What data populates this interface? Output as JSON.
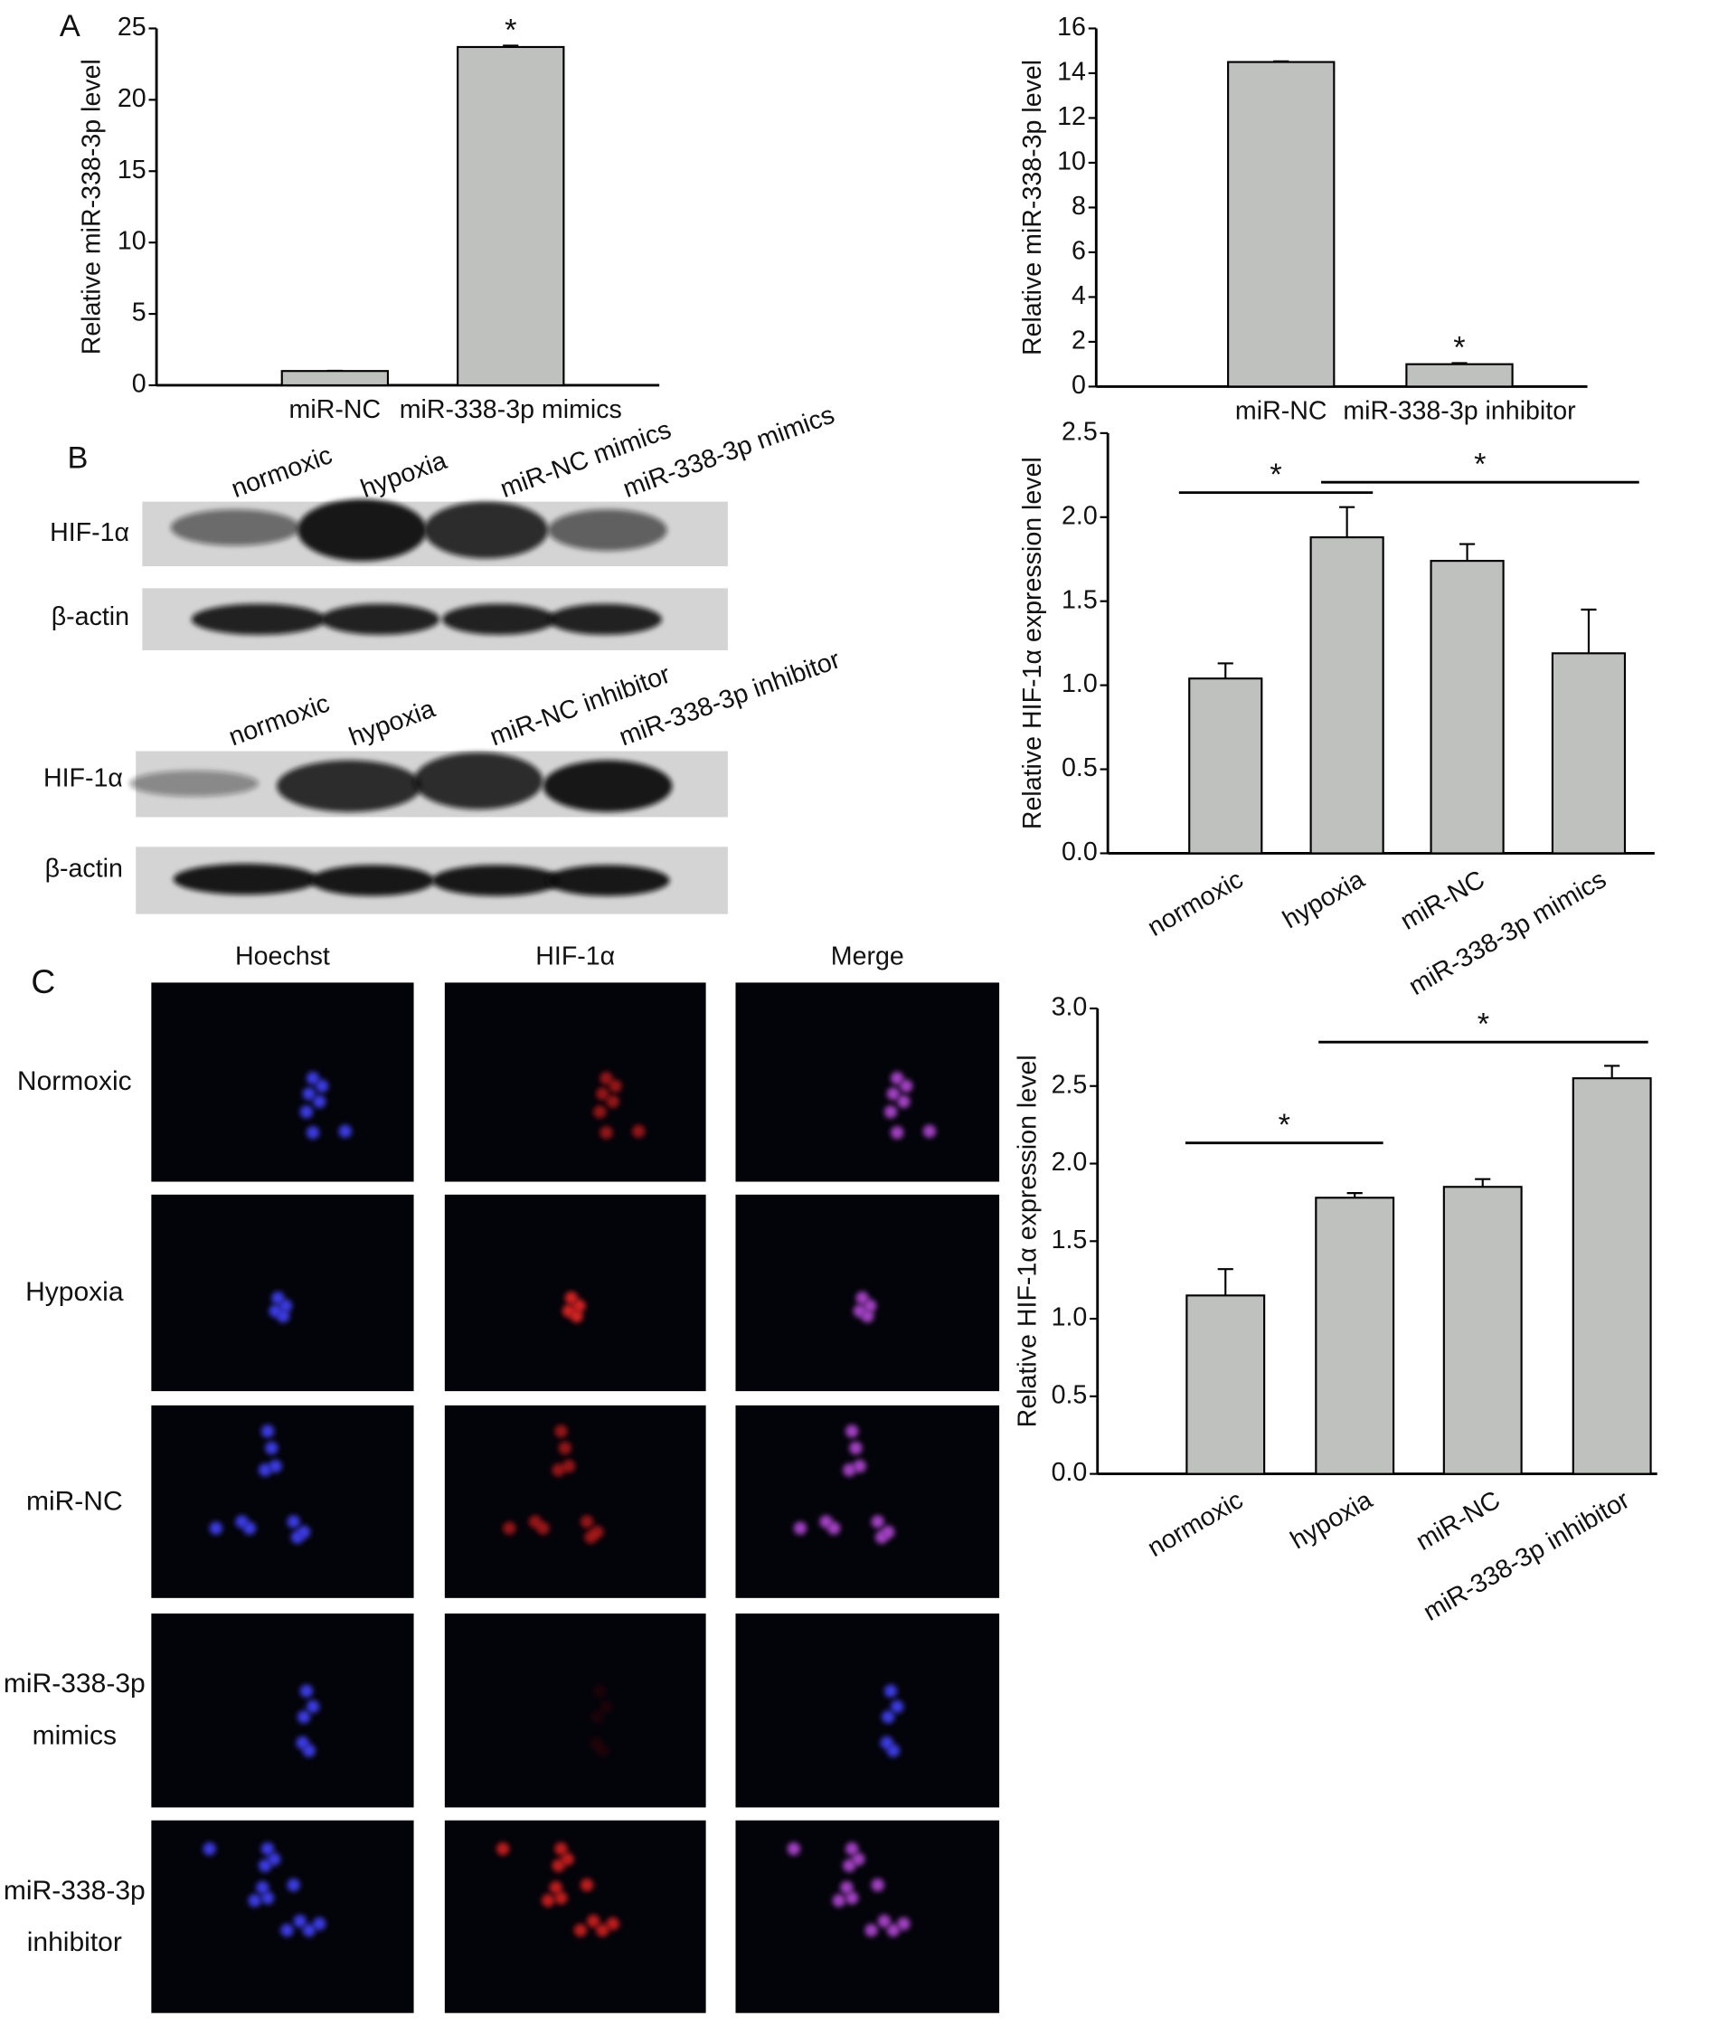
{
  "panel_labels": [
    "A",
    "B",
    "C"
  ],
  "western_blot": [
    {
      "lanes": [
        "normoxic",
        "hypoxia",
        "miR-NC mimics",
        "miR-338-3p mimics"
      ],
      "rows": [
        "HIF-1α",
        "β-actin"
      ]
    },
    {
      "lanes": [
        "normoxic",
        "hypoxia",
        "miR-NC inhibitor",
        "miR-338-3p inhibitor"
      ],
      "rows": [
        "HIF-1α",
        "β-actin"
      ]
    }
  ],
  "fluorescence": {
    "columns": [
      "Hoechst",
      "HIF-1α",
      "Merge"
    ],
    "rows": [
      "Normoxic",
      "Hypoxia",
      "miR-NC",
      "miR-338-3p mimics",
      "miR-338-3p inhibitor"
    ]
  },
  "chart_data": [
    {
      "type": "bar",
      "y_label": "Relative miR-338-3p level",
      "categories": [
        "miR-NC",
        "miR-338-3p mimics"
      ],
      "values": [
        1,
        23.7
      ],
      "errors": [
        0.02,
        0.1
      ],
      "ylim": [
        0,
        25
      ],
      "yticks": [
        0,
        5,
        10,
        15,
        20,
        25
      ],
      "annotations": [
        "*"
      ],
      "color": "#bfc1bf"
    },
    {
      "type": "bar",
      "y_label": "Relative miR-338-3p level",
      "categories": [
        "miR-NC",
        "miR-338-3p inhibitor"
      ],
      "values": [
        14.5,
        1
      ],
      "errors": [
        0.03,
        0.05
      ],
      "ylim": [
        0,
        16
      ],
      "yticks": [
        0,
        2,
        4,
        6,
        8,
        10,
        12,
        14,
        16
      ],
      "annotations": [
        "*"
      ],
      "color": "#bfc1bf"
    },
    {
      "type": "bar",
      "y_label": "Relative HIF-1α expression level",
      "categories": [
        "normoxic",
        "hypoxia",
        "miR-NC",
        "miR-338-3p mimics"
      ],
      "values": [
        1.04,
        1.88,
        1.74,
        1.19
      ],
      "errors": [
        0.09,
        0.18,
        0.1,
        0.26
      ],
      "ylim": [
        0,
        2.5
      ],
      "yticks": [
        {
          "value": 0,
          "label": "0.0"
        },
        0.5,
        {
          "value": 1,
          "label": "1.0"
        },
        1.5,
        {
          "value": 2,
          "label": "2.0"
        },
        2.5
      ],
      "annotations": [
        "*",
        "*"
      ],
      "color": "#bfc1bf"
    },
    {
      "type": "bar",
      "y_label": "Relative HIF-1α expression level",
      "categories": [
        "normoxic",
        "hypoxia",
        "miR-NC",
        "miR-338-3p inhibitor"
      ],
      "values": [
        1.15,
        1.78,
        1.85,
        2.55
      ],
      "errors": [
        0.17,
        0.03,
        0.05,
        0.08
      ],
      "ylim": [
        0,
        3
      ],
      "yticks": [
        {
          "value": 0,
          "label": "0.0"
        },
        0.5,
        {
          "value": 1,
          "label": "1.0"
        },
        1.5,
        {
          "value": 2,
          "label": "2.0"
        },
        2.5,
        {
          "value": 3,
          "label": "3.0"
        }
      ],
      "annotations": [
        "*",
        "*"
      ],
      "color": "#bfc1bf"
    }
  ]
}
